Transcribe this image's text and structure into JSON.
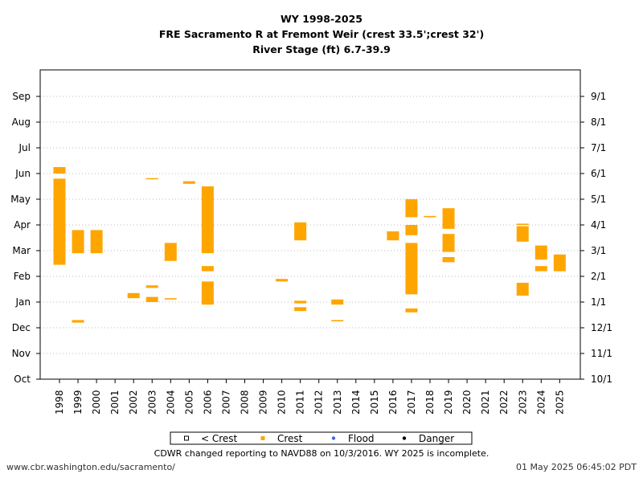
{
  "chart_data": {
    "type": "scatter",
    "title": [
      "WY 1998-2025",
      "FRE Sacramento R at Fremont Weir (crest 33.5';crest 32')",
      "River Stage (ft) 6.7-39.9"
    ],
    "x_categories": [
      "1998",
      "1999",
      "2000",
      "2001",
      "2002",
      "2003",
      "2004",
      "2005",
      "2006",
      "2007",
      "2008",
      "2009",
      "2010",
      "2011",
      "2012",
      "2013",
      "2014",
      "2015",
      "2016",
      "2017",
      "2018",
      "2019",
      "2020",
      "2021",
      "2022",
      "2023",
      "2024",
      "2025"
    ],
    "y_left_ticks": [
      "Oct",
      "Nov",
      "Dec",
      "Jan",
      "Feb",
      "Mar",
      "Apr",
      "May",
      "Jun",
      "Jul",
      "Aug",
      "Sep"
    ],
    "y_right_ticks": [
      "10/1",
      "11/1",
      "12/1",
      "1/1",
      "2/1",
      "3/1",
      "4/1",
      "5/1",
      "6/1",
      "7/1",
      "8/1",
      "9/1"
    ],
    "y_unit": "months since Oct 1",
    "grid": "horizontal dotted",
    "legend": {
      "placement": "bottom",
      "entries": [
        {
          "label": "< Crest",
          "color": "#ffffff",
          "marker": "open-square"
        },
        {
          "label": "Crest",
          "color": "#FFA500",
          "marker": "square"
        },
        {
          "label": "Flood",
          "color": "#4169E1",
          "marker": "dot"
        },
        {
          "label": "Danger",
          "color": "#000000",
          "marker": "dot"
        }
      ]
    },
    "series": [
      {
        "name": "Crest",
        "color": "#FFA500",
        "segments": [
          {
            "year": "1998",
            "start": 4.45,
            "end": 6.25
          },
          {
            "year": "1998",
            "start": 6.25,
            "end": 7.8
          },
          {
            "year": "1998",
            "start": 8.0,
            "end": 8.25
          },
          {
            "year": "1999",
            "start": 2.2,
            "end": 2.3
          },
          {
            "year": "1999",
            "start": 4.9,
            "end": 5.8
          },
          {
            "year": "2000",
            "start": 4.9,
            "end": 5.8
          },
          {
            "year": "2002",
            "start": 3.15,
            "end": 3.35
          },
          {
            "year": "2003",
            "start": 3.0,
            "end": 3.2
          },
          {
            "year": "2003",
            "start": 3.55,
            "end": 3.65
          },
          {
            "year": "2003",
            "start": 7.8,
            "end": 7.82
          },
          {
            "year": "2004",
            "start": 3.1,
            "end": 3.15
          },
          {
            "year": "2004",
            "start": 4.6,
            "end": 5.3
          },
          {
            "year": "2005",
            "start": 7.6,
            "end": 7.7
          },
          {
            "year": "2006",
            "start": 2.9,
            "end": 3.8
          },
          {
            "year": "2006",
            "start": 4.2,
            "end": 4.4
          },
          {
            "year": "2006",
            "start": 4.9,
            "end": 7.0
          },
          {
            "year": "2006",
            "start": 7.0,
            "end": 7.5
          },
          {
            "year": "2010",
            "start": 3.8,
            "end": 3.9
          },
          {
            "year": "2011",
            "start": 2.65,
            "end": 2.8
          },
          {
            "year": "2011",
            "start": 2.95,
            "end": 3.05
          },
          {
            "year": "2011",
            "start": 5.4,
            "end": 6.1
          },
          {
            "year": "2013",
            "start": 2.25,
            "end": 2.3
          },
          {
            "year": "2013",
            "start": 2.9,
            "end": 3.1
          },
          {
            "year": "2016",
            "start": 5.4,
            "end": 5.75
          },
          {
            "year": "2017",
            "start": 2.6,
            "end": 2.75
          },
          {
            "year": "2017",
            "start": 3.3,
            "end": 5.3
          },
          {
            "year": "2017",
            "start": 5.6,
            "end": 6.0
          },
          {
            "year": "2017",
            "start": 6.3,
            "end": 7.0
          },
          {
            "year": "2018",
            "start": 6.3,
            "end": 6.35
          },
          {
            "year": "2019",
            "start": 4.55,
            "end": 4.75
          },
          {
            "year": "2019",
            "start": 4.95,
            "end": 5.65
          },
          {
            "year": "2019",
            "start": 5.85,
            "end": 6.65
          },
          {
            "year": "2023",
            "start": 3.25,
            "end": 3.75
          },
          {
            "year": "2023",
            "start": 5.35,
            "end": 5.95
          },
          {
            "year": "2023",
            "start": 6.0,
            "end": 6.05
          },
          {
            "year": "2024",
            "start": 4.2,
            "end": 4.4
          },
          {
            "year": "2024",
            "start": 4.65,
            "end": 5.2
          },
          {
            "year": "2025",
            "start": 4.2,
            "end": 4.85
          }
        ]
      }
    ],
    "note": "CDWR changed reporting to NAVD88 on 10/3/2016. WY 2025 is incomplete."
  },
  "footer": {
    "source": "www.cbr.washington.edu/sacramento/",
    "timestamp": "01 May 2025 06:45:02 PDT"
  }
}
